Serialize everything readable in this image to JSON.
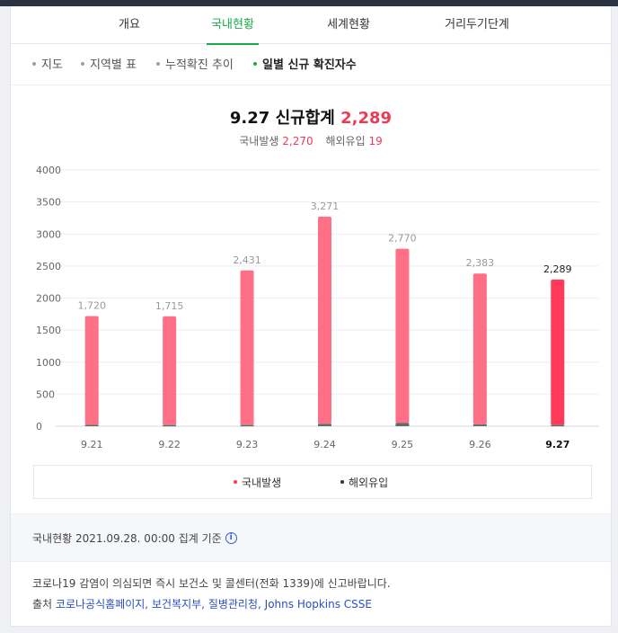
{
  "tabs": [
    {
      "label": "개요",
      "active": false
    },
    {
      "label": "국내현황",
      "active": true
    },
    {
      "label": "세계현황",
      "active": false
    },
    {
      "label": "거리두기단계",
      "active": false
    }
  ],
  "subtabs": [
    {
      "label": "지도",
      "active": false
    },
    {
      "label": "지역별 표",
      "active": false
    },
    {
      "label": "누적확진 추이",
      "active": false
    },
    {
      "label": "일별 신규 확진자수",
      "active": true
    }
  ],
  "headline": {
    "date": "9.27",
    "label": "신규합계",
    "total": "2,289",
    "domestic_label": "국내발생",
    "domestic_value": "2,270",
    "overseas_label": "해외유입",
    "overseas_value": "19"
  },
  "chart_data": {
    "type": "bar",
    "stacked": true,
    "categories": [
      "9.21",
      "9.22",
      "9.23",
      "9.24",
      "9.25",
      "9.26",
      "9.27"
    ],
    "series": [
      {
        "name": "국내발생",
        "values": [
          1700,
          1697,
          2412,
          3235,
          2721,
          2356,
          2270
        ]
      },
      {
        "name": "해외유입",
        "values": [
          20,
          18,
          19,
          36,
          49,
          27,
          19
        ]
      }
    ],
    "totals_labels": [
      "1,720",
      "1,715",
      "2,431",
      "3,271",
      "2,770",
      "2,383",
      "2,289"
    ],
    "ylim": [
      0,
      4000
    ],
    "yticks": [
      "0",
      "500",
      "1000",
      "1500",
      "2000",
      "2500",
      "3000",
      "3500",
      "4000"
    ],
    "highlight_last": true,
    "colors": {
      "domestic": "#ff6f86",
      "domestic_highlight": "#ff3b59",
      "overseas": "#5a6f6a",
      "axis_label": "#999999"
    },
    "grid": true,
    "legend_position": "bottom"
  },
  "legend": [
    {
      "label": "국내발생",
      "color": "#ff3b59"
    },
    {
      "label": "해외유입",
      "color": "#333333"
    }
  ],
  "footer": {
    "basis_text": "국내현황 2021.09.28. 00:00 집계 기준",
    "notice": "코로나19 감염이 의심되면 즉시 보건소 및 콜센터(전화 1339)에 신고바랍니다.",
    "source_label": "출처",
    "sources": [
      "코로나공식홈페이지",
      "보건복지부",
      "질병관리청",
      "Johns Hopkins CSSE"
    ]
  }
}
